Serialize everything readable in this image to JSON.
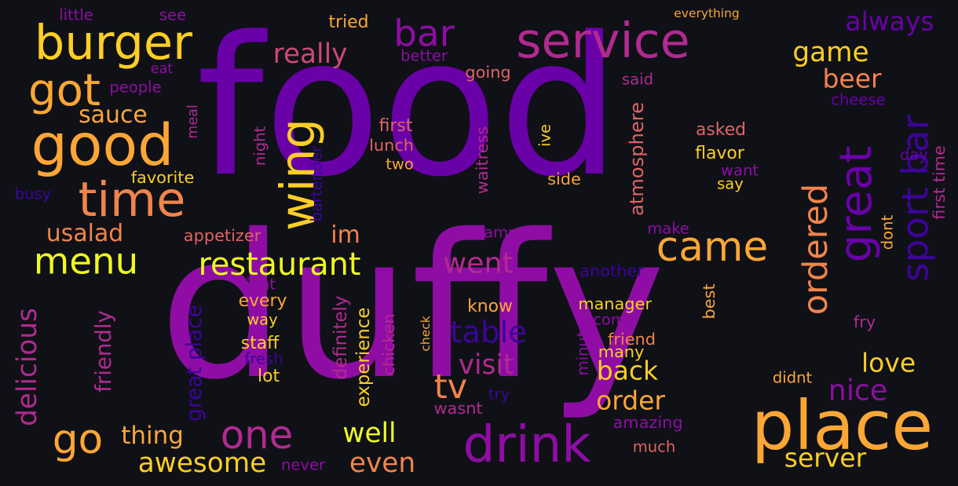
{
  "palette": {
    "background": "#0f1117",
    "violet": "#6a00a8",
    "purple": "#8f0da4",
    "indigo": "#3d049b",
    "magenta": "#b12a90",
    "pink": "#cc4778",
    "salmon": "#e16462",
    "orange": "#f2844b",
    "amber": "#fca636",
    "gold": "#fcce25",
    "yellow": "#f0f921"
  },
  "words": [
    {
      "id": "food",
      "text": "food",
      "color": "#6a00a8"
    },
    {
      "id": "duffy",
      "text": "duffy",
      "color": "#8f0da4"
    },
    {
      "id": "service",
      "text": "service",
      "color": "#b12a90"
    },
    {
      "id": "place",
      "text": "place",
      "color": "#fca636"
    },
    {
      "id": "drink",
      "text": "drink",
      "color": "#8f0da4"
    },
    {
      "id": "great",
      "text": "great",
      "color": "#6a00a8"
    },
    {
      "id": "good",
      "text": "good",
      "color": "#fca636"
    },
    {
      "id": "time",
      "text": "time",
      "color": "#f2844b"
    },
    {
      "id": "burger",
      "text": "burger",
      "color": "#fcce25"
    },
    {
      "id": "bar",
      "text": "bar",
      "color": "#8f0da4"
    },
    {
      "id": "sport-bar",
      "text": "sport bar",
      "color": "#3d049b"
    },
    {
      "id": "got",
      "text": "got",
      "color": "#fca636"
    },
    {
      "id": "wing",
      "text": "wing",
      "color": "#fcce25"
    },
    {
      "id": "came",
      "text": "came",
      "color": "#fca636"
    },
    {
      "id": "ordered",
      "text": "ordered",
      "color": "#f2844b"
    },
    {
      "id": "one",
      "text": "one",
      "color": "#b12a90"
    },
    {
      "id": "menu",
      "text": "menu",
      "color": "#f0f921"
    },
    {
      "id": "restaurant",
      "text": "restaurant",
      "color": "#f0f921"
    },
    {
      "id": "go",
      "text": "go",
      "color": "#fca636"
    },
    {
      "id": "tv",
      "text": "tv",
      "color": "#f2844b"
    },
    {
      "id": "table",
      "text": "table",
      "color": "#3d049b"
    },
    {
      "id": "visit",
      "text": "visit",
      "color": "#b12a90"
    },
    {
      "id": "back",
      "text": "back",
      "color": "#fcce25"
    },
    {
      "id": "order",
      "text": "order",
      "color": "#fca636"
    },
    {
      "id": "nice",
      "text": "nice",
      "color": "#8f0da4"
    },
    {
      "id": "love",
      "text": "love",
      "color": "#fcce25"
    },
    {
      "id": "server",
      "text": "server",
      "color": "#fcce25"
    },
    {
      "id": "game",
      "text": "game",
      "color": "#fcce25"
    },
    {
      "id": "beer",
      "text": "beer",
      "color": "#f2844b"
    },
    {
      "id": "always",
      "text": "always",
      "color": "#6a00a8"
    },
    {
      "id": "really",
      "text": "really",
      "color": "#cc4778"
    },
    {
      "id": "well",
      "text": "well",
      "color": "#f0f921"
    },
    {
      "id": "even",
      "text": "even",
      "color": "#f2844b"
    },
    {
      "id": "awesome",
      "text": "awesome",
      "color": "#fcce25"
    },
    {
      "id": "thing",
      "text": "thing",
      "color": "#fca636"
    },
    {
      "id": "went",
      "text": "went",
      "color": "#b12a90"
    },
    {
      "id": "im",
      "text": "im",
      "color": "#f2844b"
    },
    {
      "id": "usalad",
      "text": "usalad",
      "color": "#f2844b"
    },
    {
      "id": "sauce",
      "text": "sauce",
      "color": "#fca636"
    },
    {
      "id": "delicious",
      "text": "delicious",
      "color": "#b12a90"
    },
    {
      "id": "appetizer",
      "text": "appetizer",
      "color": "#e16462"
    },
    {
      "id": "favorite",
      "text": "favorite",
      "color": "#fcce25"
    },
    {
      "id": "tried",
      "text": "tried",
      "color": "#fca636"
    },
    {
      "id": "little",
      "text": "little",
      "color": "#8f0da4"
    },
    {
      "id": "see",
      "text": "see",
      "color": "#8f0da4"
    },
    {
      "id": "eat",
      "text": "eat",
      "color": "#8f0da4"
    },
    {
      "id": "people",
      "text": "people",
      "color": "#8f0da4"
    },
    {
      "id": "better",
      "text": "better",
      "color": "#8f0da4"
    },
    {
      "id": "going",
      "text": "going",
      "color": "#e16462"
    },
    {
      "id": "said",
      "text": "said",
      "color": "#b12a90"
    },
    {
      "id": "everything",
      "text": "everything",
      "color": "#fca636"
    },
    {
      "id": "cheese",
      "text": "cheese",
      "color": "#6a00a8"
    },
    {
      "id": "first",
      "text": "first",
      "color": "#e16462"
    },
    {
      "id": "lunch",
      "text": "lunch",
      "color": "#e16462"
    },
    {
      "id": "two",
      "text": "two",
      "color": "#fca636"
    },
    {
      "id": "asked",
      "text": "asked",
      "color": "#e16462"
    },
    {
      "id": "flavor",
      "text": "flavor",
      "color": "#fcce25"
    },
    {
      "id": "want",
      "text": "want",
      "color": "#8f0da4"
    },
    {
      "id": "say",
      "text": "say",
      "color": "#fcce25"
    },
    {
      "id": "side",
      "text": "side",
      "color": "#fca636"
    },
    {
      "id": "day",
      "text": "day",
      "color": "#6a00a8"
    },
    {
      "id": "first-time",
      "text": "first time",
      "color": "#b12a90"
    },
    {
      "id": "dont",
      "text": "dont",
      "color": "#fca636"
    },
    {
      "id": "make",
      "text": "make",
      "color": "#8f0da4"
    },
    {
      "id": "tampa",
      "text": "tampa",
      "color": "#8f0da4"
    },
    {
      "id": "busy",
      "text": "busy",
      "color": "#3d049b"
    },
    {
      "id": "meal",
      "text": "meal",
      "color": "#b12a90"
    },
    {
      "id": "night",
      "text": "night",
      "color": "#b12a90"
    },
    {
      "id": "bartender",
      "text": "bartender",
      "color": "#3d049b"
    },
    {
      "id": "waitress",
      "text": "waitress",
      "color": "#b12a90"
    },
    {
      "id": "ive",
      "text": "ive",
      "color": "#fcce25"
    },
    {
      "id": "atmosphere",
      "text": "atmosphere",
      "color": "#e16462"
    },
    {
      "id": "right",
      "text": "right",
      "color": "#8f0da4"
    },
    {
      "id": "every",
      "text": "every",
      "color": "#fca636"
    },
    {
      "id": "way",
      "text": "way",
      "color": "#fcce25"
    },
    {
      "id": "staff",
      "text": "staff",
      "color": "#fcce25"
    },
    {
      "id": "fresh",
      "text": "fresh",
      "color": "#3d049b"
    },
    {
      "id": "lot",
      "text": "lot",
      "color": "#fcce25"
    },
    {
      "id": "friendly",
      "text": "friendly",
      "color": "#b12a90"
    },
    {
      "id": "great-place",
      "text": "great place",
      "color": "#3d049b"
    },
    {
      "id": "definitely",
      "text": "definitely",
      "color": "#b12a90"
    },
    {
      "id": "experience",
      "text": "experience",
      "color": "#fcce25"
    },
    {
      "id": "chicken",
      "text": "chicken",
      "color": "#b12a90"
    },
    {
      "id": "check",
      "text": "check",
      "color": "#fca636"
    },
    {
      "id": "wasnt",
      "text": "wasnt",
      "color": "#b12a90"
    },
    {
      "id": "try",
      "text": "try",
      "color": "#3d049b"
    },
    {
      "id": "know",
      "text": "know",
      "color": "#fca636"
    },
    {
      "id": "another",
      "text": "another",
      "color": "#3d049b"
    },
    {
      "id": "manager",
      "text": "manager",
      "color": "#fcce25"
    },
    {
      "id": "come",
      "text": "come",
      "color": "#8f0da4"
    },
    {
      "id": "friend",
      "text": "friend",
      "color": "#f2844b"
    },
    {
      "id": "many",
      "text": "many",
      "color": "#fcce25"
    },
    {
      "id": "minute",
      "text": "minute",
      "color": "#8f0da4"
    },
    {
      "id": "amazing",
      "text": "amazing",
      "color": "#8f0da4"
    },
    {
      "id": "much",
      "text": "much",
      "color": "#e16462"
    },
    {
      "id": "never",
      "text": "never",
      "color": "#8f0da4"
    },
    {
      "id": "best",
      "text": "best",
      "color": "#fca636"
    },
    {
      "id": "fry",
      "text": "fry",
      "color": "#b12a90"
    },
    {
      "id": "didnt",
      "text": "didnt",
      "color": "#fca636"
    }
  ]
}
